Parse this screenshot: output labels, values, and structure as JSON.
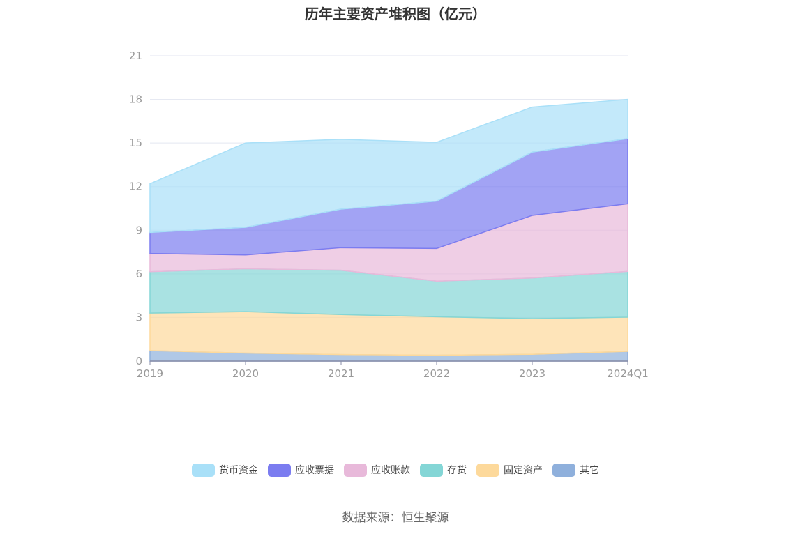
{
  "title": "历年主要资产堆积图（亿元）",
  "source": "数据来源：恒生聚源",
  "chart_data": {
    "type": "area",
    "stacked": true,
    "categories": [
      "2019",
      "2020",
      "2021",
      "2022",
      "2023",
      "2024Q1"
    ],
    "ylim": [
      0,
      21
    ],
    "yticks": [
      0,
      3,
      6,
      9,
      12,
      15,
      18,
      21
    ],
    "grid": true,
    "legend_position": "bottom",
    "series": [
      {
        "name": "其它",
        "color": "#8fb0dc",
        "values": [
          0.72,
          0.55,
          0.45,
          0.4,
          0.47,
          0.67
        ]
      },
      {
        "name": "固定资产",
        "color": "#fdd99b",
        "values": [
          2.58,
          2.85,
          2.75,
          2.65,
          2.45,
          2.35
        ]
      },
      {
        "name": "存货",
        "color": "#84d6d6",
        "values": [
          2.85,
          2.95,
          3.05,
          2.45,
          2.8,
          3.15
        ]
      },
      {
        "name": "应收账款",
        "color": "#e8b9da",
        "values": [
          1.25,
          0.95,
          1.55,
          2.25,
          4.3,
          4.65
        ]
      },
      {
        "name": "应收票据",
        "color": "#7b7cf0",
        "values": [
          1.45,
          1.9,
          2.65,
          3.25,
          4.35,
          4.48
        ]
      },
      {
        "name": "货币资金",
        "color": "#a9e0f8",
        "values": [
          3.35,
          5.8,
          4.8,
          4.05,
          3.1,
          2.7
        ]
      }
    ]
  }
}
